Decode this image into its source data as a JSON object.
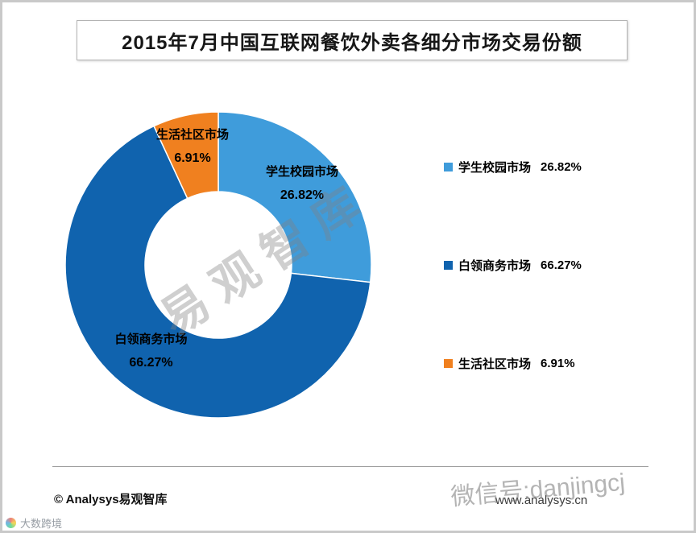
{
  "title": "2015年7月中国互联网餐饮外卖各细分市场交易份额",
  "chart_data": {
    "type": "pie",
    "subtype": "donut",
    "title": "2015年7月中国互联网餐饮外卖各细分市场交易份额",
    "start_angle_deg": 0,
    "direction": "clockwise",
    "legend_position": "right",
    "inner_radius_ratio": 0.48,
    "series": [
      {
        "name": "学生校园市场",
        "value": 26.82,
        "display": "26.82%",
        "color": "#3F9CDB"
      },
      {
        "name": "白领商务市场",
        "value": 66.27,
        "display": "66.27%",
        "color": "#1063AE"
      },
      {
        "name": "生活社区市场",
        "value": 6.91,
        "display": "6.91%",
        "color": "#F0801F"
      }
    ]
  },
  "watermarks": {
    "diagonal": "易观智库",
    "wechat": "微信号:danjingcj",
    "corner": "大数跨境"
  },
  "footer": {
    "copyright": "© Analysys易观智库",
    "website": "www.analysys.cn"
  }
}
